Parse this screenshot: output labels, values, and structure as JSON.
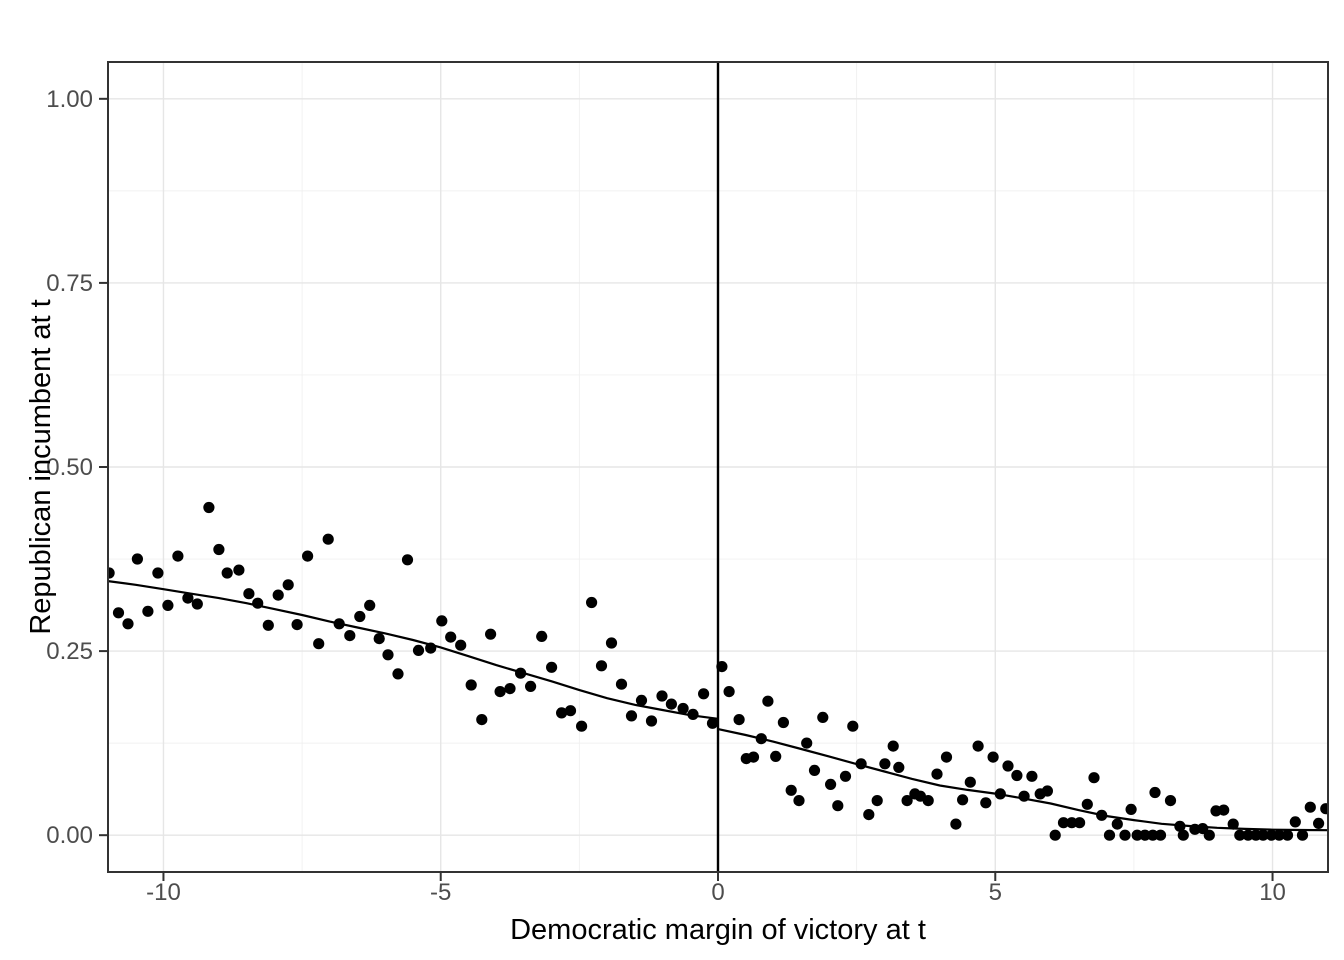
{
  "chart_data": {
    "type": "scatter",
    "title": "",
    "xlabel": "Democratic margin of victory at t",
    "ylabel": "Republican incumbent at t",
    "xlim": [
      -11,
      11
    ],
    "ylim": [
      -0.05,
      1.05
    ],
    "grid": true,
    "legend_position": "none",
    "x_ticks": {
      "values": [
        -10,
        -5,
        0,
        5,
        10
      ],
      "labels": [
        "-10",
        "-5",
        "0",
        "5",
        "10"
      ]
    },
    "y_ticks": {
      "values": [
        0,
        0.25,
        0.5,
        0.75,
        1
      ],
      "labels": [
        "0.00",
        "0.25",
        "0.50",
        "0.75",
        "1.00"
      ]
    },
    "x_minor": [
      -7.5,
      -2.5,
      2.5,
      7.5
    ],
    "y_minor": [
      0.125,
      0.375,
      0.625,
      0.875
    ],
    "cutoff_line_x": 0,
    "colors": {
      "point": "#000000",
      "smooth_line": "#000000",
      "cutoff_line": "#000000",
      "grid_major": "#e6e6e6",
      "grid_minor": "#f0f0f0",
      "panel_border": "#333333",
      "axis_tick": "#333333",
      "tick_label": "#4d4d4d",
      "axis_title": "#000000",
      "background": "#ffffff"
    },
    "points": [
      [
        -10.98,
        0.356
      ],
      [
        -10.81,
        0.302
      ],
      [
        -10.64,
        0.287
      ],
      [
        -10.47,
        0.375
      ],
      [
        -10.28,
        0.304
      ],
      [
        -10.1,
        0.356
      ],
      [
        -9.92,
        0.312
      ],
      [
        -9.74,
        0.379
      ],
      [
        -9.56,
        0.322
      ],
      [
        -9.39,
        0.314
      ],
      [
        -9.18,
        0.445
      ],
      [
        -9.0,
        0.388
      ],
      [
        -8.85,
        0.356
      ],
      [
        -8.64,
        0.36
      ],
      [
        -8.46,
        0.328
      ],
      [
        -8.3,
        0.315
      ],
      [
        -8.11,
        0.285
      ],
      [
        -7.93,
        0.326
      ],
      [
        -7.75,
        0.34
      ],
      [
        -7.59,
        0.286
      ],
      [
        -7.4,
        0.379
      ],
      [
        -7.2,
        0.26
      ],
      [
        -7.03,
        0.402
      ],
      [
        -6.83,
        0.287
      ],
      [
        -6.64,
        0.271
      ],
      [
        -6.46,
        0.297
      ],
      [
        -6.28,
        0.312
      ],
      [
        -6.11,
        0.267
      ],
      [
        -5.95,
        0.245
      ],
      [
        -5.77,
        0.219
      ],
      [
        -5.6,
        0.374
      ],
      [
        -5.4,
        0.251
      ],
      [
        -5.18,
        0.254
      ],
      [
        -4.98,
        0.291
      ],
      [
        -4.82,
        0.269
      ],
      [
        -4.64,
        0.258
      ],
      [
        -4.45,
        0.204
      ],
      [
        -4.26,
        0.157
      ],
      [
        -4.1,
        0.273
      ],
      [
        -3.93,
        0.195
      ],
      [
        -3.75,
        0.199
      ],
      [
        -3.56,
        0.22
      ],
      [
        -3.38,
        0.202
      ],
      [
        -3.18,
        0.27
      ],
      [
        -3.0,
        0.228
      ],
      [
        -2.82,
        0.166
      ],
      [
        -2.66,
        0.169
      ],
      [
        -2.46,
        0.148
      ],
      [
        -2.28,
        0.316
      ],
      [
        -2.1,
        0.23
      ],
      [
        -1.92,
        0.261
      ],
      [
        -1.74,
        0.205
      ],
      [
        -1.56,
        0.162
      ],
      [
        -1.38,
        0.183
      ],
      [
        -1.2,
        0.155
      ],
      [
        -1.01,
        0.189
      ],
      [
        -0.84,
        0.178
      ],
      [
        -0.63,
        0.172
      ],
      [
        -0.45,
        0.164
      ],
      [
        -0.26,
        0.192
      ],
      [
        -0.1,
        0.152
      ],
      [
        0.07,
        0.229
      ],
      [
        0.2,
        0.195
      ],
      [
        0.38,
        0.157
      ],
      [
        0.51,
        0.104
      ],
      [
        0.64,
        0.106
      ],
      [
        0.78,
        0.131
      ],
      [
        0.9,
        0.182
      ],
      [
        1.04,
        0.107
      ],
      [
        1.18,
        0.153
      ],
      [
        1.32,
        0.061
      ],
      [
        1.46,
        0.047
      ],
      [
        1.6,
        0.125
      ],
      [
        1.74,
        0.088
      ],
      [
        1.89,
        0.16
      ],
      [
        2.03,
        0.069
      ],
      [
        2.16,
        0.04
      ],
      [
        2.3,
        0.08
      ],
      [
        2.43,
        0.148
      ],
      [
        2.58,
        0.097
      ],
      [
        2.72,
        0.028
      ],
      [
        2.87,
        0.047
      ],
      [
        3.01,
        0.097
      ],
      [
        3.16,
        0.121
      ],
      [
        3.26,
        0.092
      ],
      [
        3.41,
        0.047
      ],
      [
        3.55,
        0.056
      ],
      [
        3.65,
        0.053
      ],
      [
        3.79,
        0.047
      ],
      [
        3.95,
        0.083
      ],
      [
        4.12,
        0.106
      ],
      [
        4.29,
        0.015
      ],
      [
        4.41,
        0.048
      ],
      [
        4.55,
        0.072
      ],
      [
        4.69,
        0.121
      ],
      [
        4.83,
        0.044
      ],
      [
        4.96,
        0.106
      ],
      [
        5.09,
        0.056
      ],
      [
        5.23,
        0.094
      ],
      [
        5.39,
        0.081
      ],
      [
        5.52,
        0.053
      ],
      [
        5.66,
        0.08
      ],
      [
        5.81,
        0.056
      ],
      [
        5.94,
        0.06
      ],
      [
        6.08,
        0.0
      ],
      [
        6.23,
        0.017
      ],
      [
        6.38,
        0.017
      ],
      [
        6.52,
        0.017
      ],
      [
        6.66,
        0.042
      ],
      [
        6.78,
        0.078
      ],
      [
        6.92,
        0.027
      ],
      [
        7.06,
        0.0
      ],
      [
        7.2,
        0.015
      ],
      [
        7.34,
        0.0
      ],
      [
        7.45,
        0.035
      ],
      [
        7.56,
        0.0
      ],
      [
        7.7,
        0.0
      ],
      [
        7.84,
        0.0
      ],
      [
        7.88,
        0.058
      ],
      [
        7.98,
        0.0
      ],
      [
        8.16,
        0.047
      ],
      [
        8.33,
        0.012
      ],
      [
        8.39,
        0.0
      ],
      [
        8.6,
        0.008
      ],
      [
        8.74,
        0.009
      ],
      [
        8.86,
        0.0
      ],
      [
        8.98,
        0.033
      ],
      [
        9.12,
        0.034
      ],
      [
        9.29,
        0.015
      ],
      [
        9.41,
        0.0
      ],
      [
        9.56,
        0.0
      ],
      [
        9.7,
        0.0
      ],
      [
        9.83,
        0.0
      ],
      [
        9.98,
        0.0
      ],
      [
        10.12,
        0.0
      ],
      [
        10.27,
        0.0
      ],
      [
        10.41,
        0.018
      ],
      [
        10.54,
        0.0
      ],
      [
        10.68,
        0.038
      ],
      [
        10.83,
        0.016
      ],
      [
        10.96,
        0.036
      ]
    ],
    "smooth_line_left": [
      [
        -11,
        0.345
      ],
      [
        -10.5,
        0.34
      ],
      [
        -10,
        0.334
      ],
      [
        -9.5,
        0.328
      ],
      [
        -9,
        0.322
      ],
      [
        -8.5,
        0.315
      ],
      [
        -8,
        0.307
      ],
      [
        -7.5,
        0.299
      ],
      [
        -7,
        0.29
      ],
      [
        -6.5,
        0.282
      ],
      [
        -6,
        0.274
      ],
      [
        -5.5,
        0.265
      ],
      [
        -5,
        0.255
      ],
      [
        -4.5,
        0.243
      ],
      [
        -4,
        0.231
      ],
      [
        -3.5,
        0.22
      ],
      [
        -3,
        0.209
      ],
      [
        -2.5,
        0.197
      ],
      [
        -2,
        0.186
      ],
      [
        -1.5,
        0.177
      ],
      [
        -1,
        0.17
      ],
      [
        -0.5,
        0.163
      ],
      [
        0,
        0.158
      ]
    ],
    "smooth_line_right": [
      [
        0,
        0.144
      ],
      [
        0.5,
        0.136
      ],
      [
        1,
        0.127
      ],
      [
        1.5,
        0.117
      ],
      [
        2,
        0.107
      ],
      [
        2.5,
        0.0965
      ],
      [
        3,
        0.0865
      ],
      [
        3.5,
        0.0765
      ],
      [
        4,
        0.0675
      ],
      [
        4.5,
        0.0615
      ],
      [
        5,
        0.0565
      ],
      [
        5.5,
        0.05
      ],
      [
        6,
        0.043
      ],
      [
        6.5,
        0.034
      ],
      [
        7,
        0.026
      ],
      [
        7.5,
        0.0205
      ],
      [
        8,
        0.0155
      ],
      [
        8.5,
        0.0125
      ],
      [
        9,
        0.01
      ],
      [
        9.5,
        0.0085
      ],
      [
        10,
        0.0075
      ],
      [
        10.5,
        0.007
      ],
      [
        11,
        0.0068
      ]
    ]
  }
}
